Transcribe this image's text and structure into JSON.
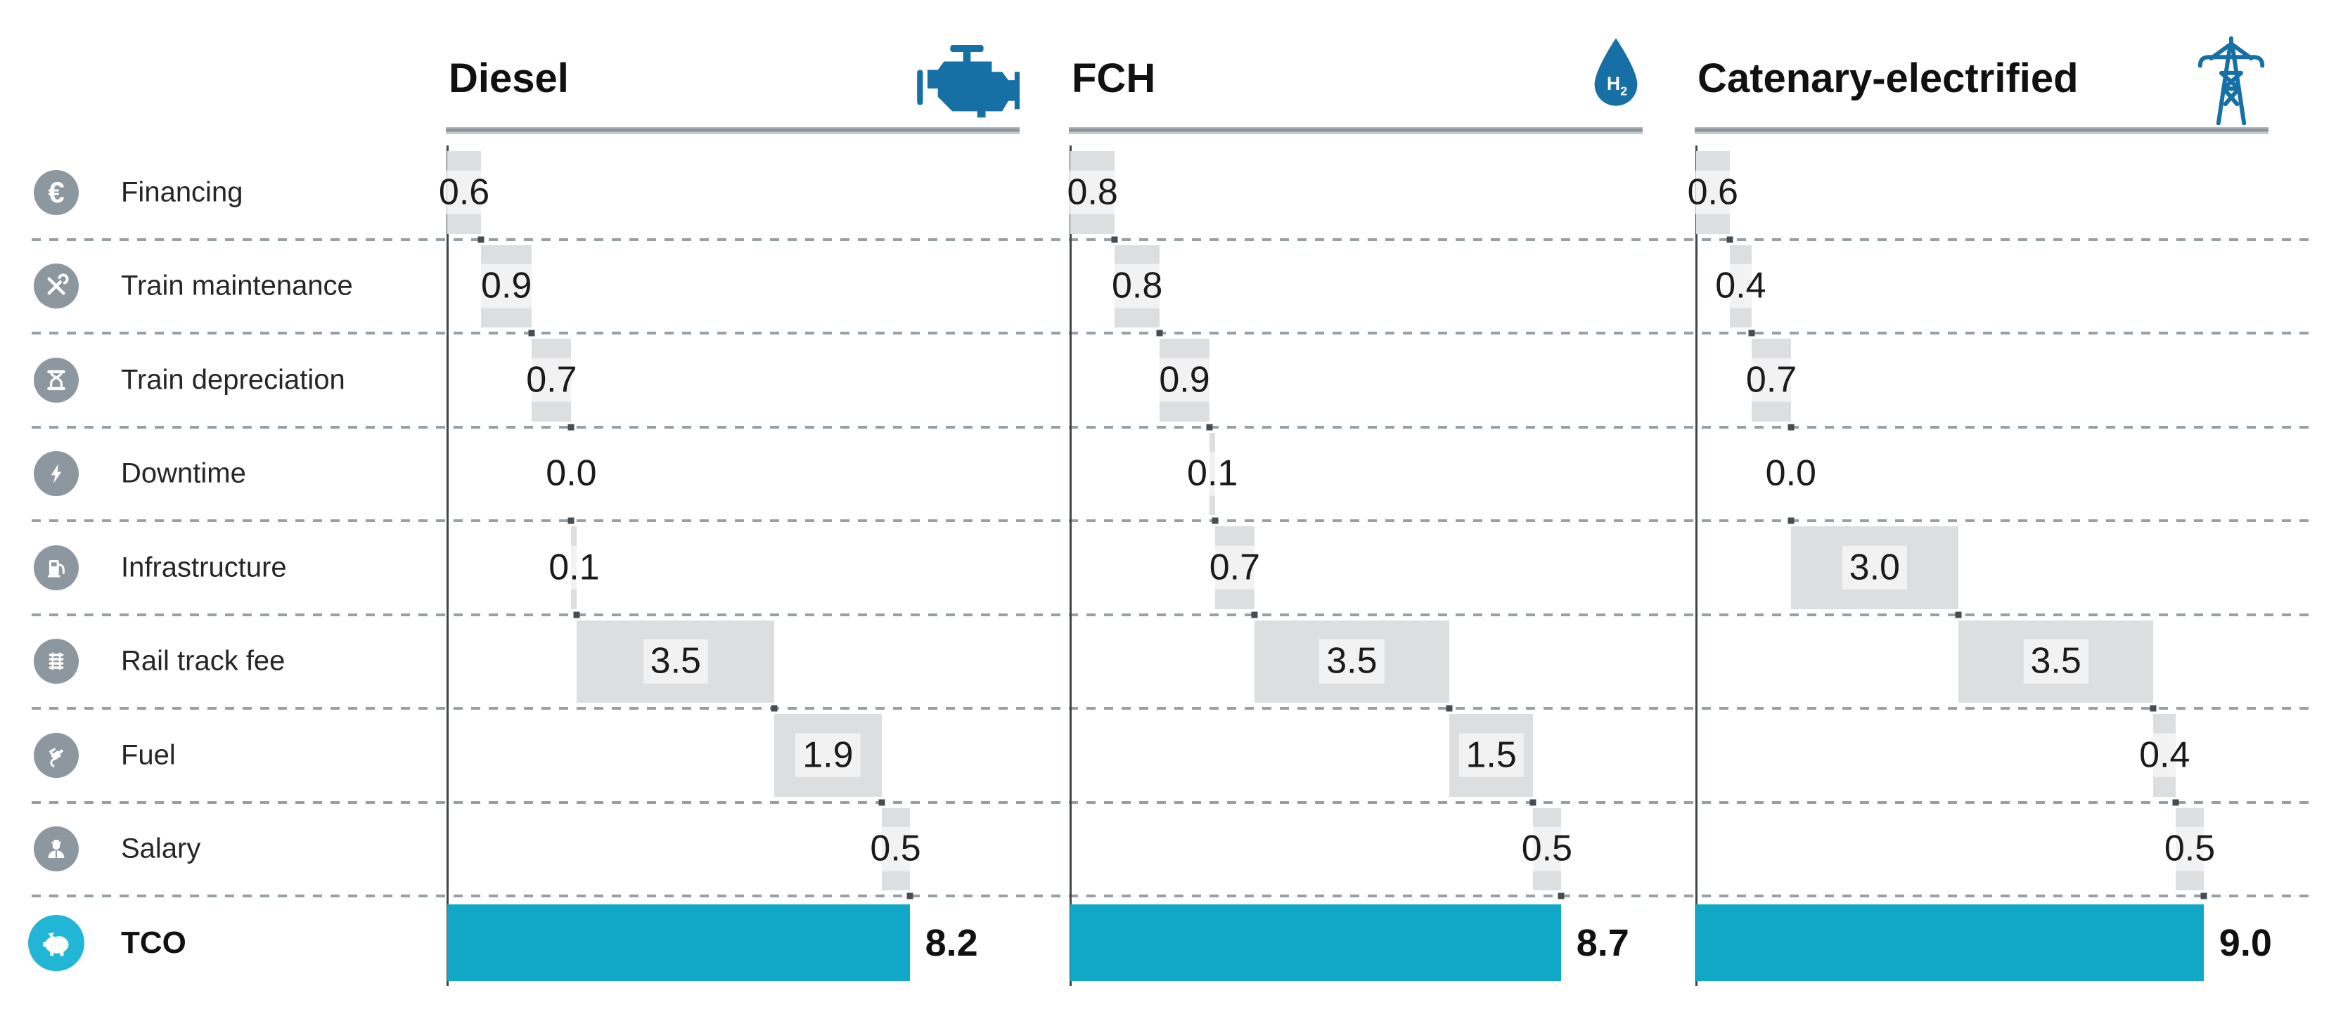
{
  "chart_data": {
    "type": "waterfall",
    "description_note": "",
    "categories": [
      {
        "label": "Financing",
        "icon": "euro-icon"
      },
      {
        "label": "Train maintenance",
        "icon": "tools-icon"
      },
      {
        "label": "Train depreciation",
        "icon": "hourglass-icon"
      },
      {
        "label": "Downtime",
        "icon": "lightning-icon"
      },
      {
        "label": "Infrastructure",
        "icon": "fuel-pump-icon"
      },
      {
        "label": "Rail track fee",
        "icon": "rail-track-icon"
      },
      {
        "label": "Fuel",
        "icon": "fuel-nozzle-icon"
      },
      {
        "label": "Salary",
        "icon": "driver-icon"
      }
    ],
    "total_row": {
      "label": "TCO",
      "icon": "piggy-bank-icon"
    },
    "series": [
      {
        "name": "Diesel",
        "icon": "engine-icon",
        "values": [
          "0.6",
          "0.9",
          "0.7",
          "0.0",
          "0.1",
          "3.5",
          "1.9",
          "0.5"
        ],
        "total": "8.2"
      },
      {
        "name": "FCH",
        "icon": "hydrogen-drop-icon",
        "values": [
          "0.8",
          "0.8",
          "0.9",
          "0.1",
          "0.7",
          "3.5",
          "1.5",
          "0.5"
        ],
        "total": "8.7"
      },
      {
        "name": "Catenary-electrified",
        "icon": "power-pylon-icon",
        "values": [
          "0.6",
          "0.4",
          "0.7",
          "0.0",
          "3.0",
          "3.5",
          "0.4",
          "0.5"
        ],
        "total": "9.0"
      }
    ],
    "colors": {
      "accent_blue": "#1670a5",
      "total_bar": "#10a8c6",
      "total_icon_bg": "#22b6d6",
      "category_icon_bg": "#8c97a0",
      "segment_bar": "#dcdee0",
      "dash_line": "#98a0a7",
      "axis_line": "#40464a",
      "text": "#1b1b1b"
    },
    "layout_hints": {
      "panels": 3,
      "grid": "dashed-row-separators",
      "legend": "none",
      "value_labels": "on-segments",
      "totals_position": "right-of-total-bar"
    }
  }
}
